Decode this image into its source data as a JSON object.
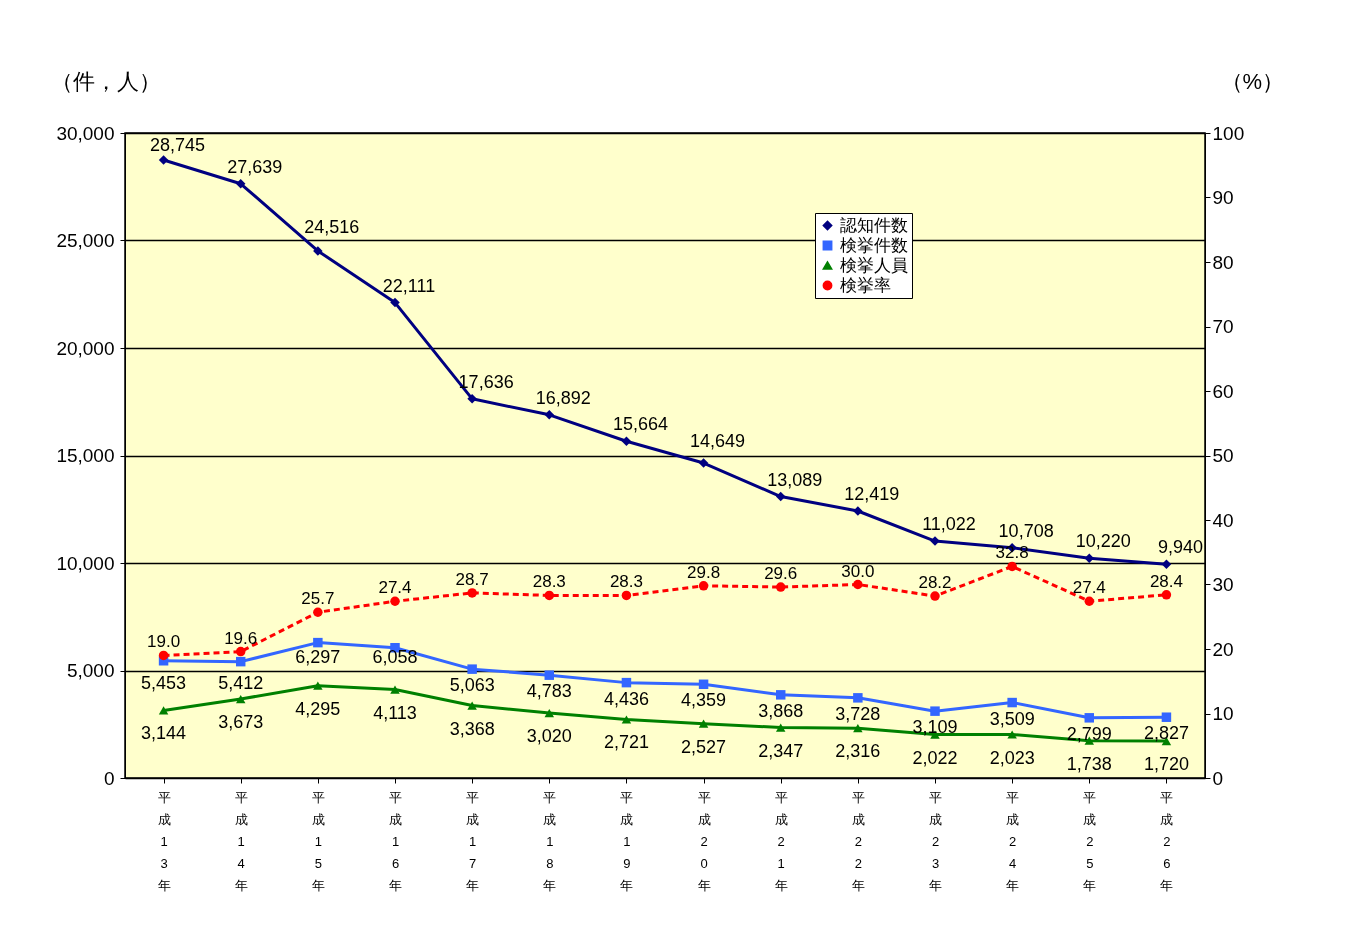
{
  "chart_data": {
    "type": "line",
    "ylabel": "（件，人）",
    "y2label": "（%）",
    "categories": [
      "平成13年",
      "平成14年",
      "平成15年",
      "平成16年",
      "平成17年",
      "平成18年",
      "平成19年",
      "平成20年",
      "平成21年",
      "平成22年",
      "平成23年",
      "平成24年",
      "平成25年",
      "平成26年"
    ],
    "series": [
      {
        "name": "認知件数",
        "color": "#000080",
        "marker": "diamond",
        "line_style": "solid",
        "values": [
          28745,
          27639,
          24516,
          22111,
          17636,
          16892,
          15664,
          14649,
          13089,
          12419,
          11022,
          10708,
          10220,
          9940
        ],
        "value_labels": [
          "28,745",
          "27,639",
          "24,516",
          "22,111",
          "17,636",
          "16,892",
          "15,664",
          "14,649",
          "13,089",
          "12,419",
          "11,022",
          "10,708",
          "10,220",
          "9,940"
        ]
      },
      {
        "name": "検挙件数",
        "color": "#3366ff",
        "marker": "square",
        "line_style": "solid",
        "values": [
          5453,
          5412,
          6297,
          6058,
          5063,
          4783,
          4436,
          4359,
          3868,
          3728,
          3109,
          3509,
          2799,
          2827
        ],
        "value_labels": [
          "5,453",
          "5,412",
          "6,297",
          "6,058",
          "5,063",
          "4,783",
          "4,436",
          "4,359",
          "3,868",
          "3,728",
          "3,109",
          "3,509",
          "2,799",
          "2,827"
        ]
      },
      {
        "name": "検挙人員",
        "color": "#008000",
        "marker": "triangle",
        "line_style": "solid",
        "values": [
          3144,
          3673,
          4295,
          4113,
          3368,
          3020,
          2721,
          2527,
          2347,
          2316,
          2022,
          2023,
          1738,
          1720
        ],
        "value_labels": [
          "3,144",
          "3,673",
          "4,295",
          "4,113",
          "3,368",
          "3,020",
          "2,721",
          "2,527",
          "2,347",
          "2,316",
          "2,022",
          "2,023",
          "1,738",
          "1,720"
        ]
      },
      {
        "name": "検挙率",
        "color": "#ff0000",
        "marker": "circle",
        "line_style": "dashed",
        "axis": "y2",
        "values": [
          19.0,
          19.6,
          25.7,
          27.4,
          28.7,
          28.3,
          28.3,
          29.8,
          29.6,
          30.0,
          28.2,
          32.8,
          27.4,
          28.4
        ],
        "value_labels": [
          "19.0",
          "19.6",
          "25.7",
          "27.4",
          "28.7",
          "28.3",
          "28.3",
          "29.8",
          "29.6",
          "30.0",
          "28.2",
          "32.8",
          "27.4",
          "28.4"
        ]
      }
    ],
    "ylim": [
      0,
      30000
    ],
    "yticks": [
      0,
      {
        "value": 5000,
        "label": "5,000"
      },
      {
        "value": 10000,
        "label": "10,000"
      },
      {
        "value": 15000,
        "label": "15,000"
      },
      {
        "value": 20000,
        "label": "20,000"
      },
      {
        "value": 25000,
        "label": "25,000"
      },
      {
        "value": 30000,
        "label": "30,000"
      }
    ],
    "y2lim": [
      0,
      100
    ],
    "y2ticks": [
      0,
      10,
      20,
      30,
      40,
      50,
      60,
      70,
      80,
      90,
      100
    ],
    "grid": "y",
    "legend": "top right"
  }
}
